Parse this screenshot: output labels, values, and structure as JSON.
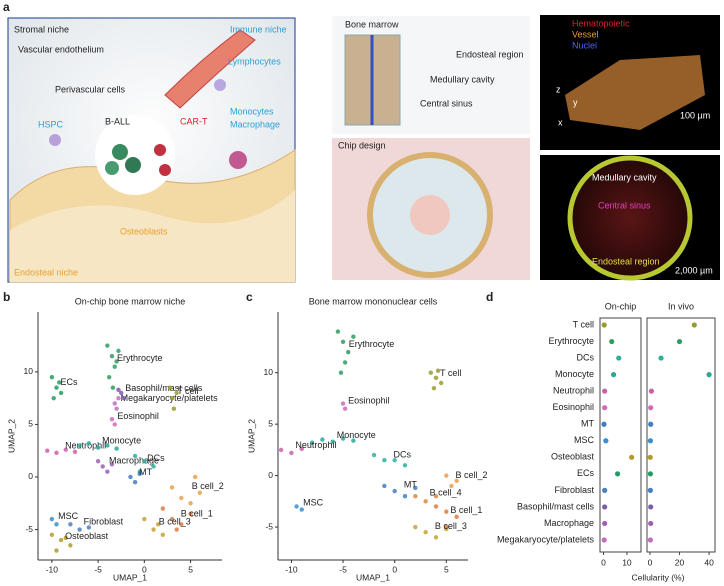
{
  "panel_a": {
    "label": "a",
    "labels": [
      "Stromal niche",
      "Immune niche",
      "Vascular endothelium",
      "Perivascular cells",
      "Lymphocytes",
      "HSPC",
      "B-ALL",
      "CAR-T",
      "Monocytes",
      "Macrophage",
      "Osteoblasts",
      "Endosteal niche",
      "Bone marrow",
      "Endosteal region",
      "Medullary cavity",
      "Central sinus",
      "Chip design",
      "Hematopoietic",
      "Vessel",
      "Nuclei",
      "100 µm",
      "Medullary cavity",
      "Central sinus",
      "Endosteal region",
      "2,000 µm",
      "z",
      "y",
      "x"
    ]
  },
  "chart_data": [
    {
      "type": "scatter",
      "panel": "b",
      "title": "On-chip bone marrow niche",
      "xlabel": "UMAP_1",
      "ylabel": "UMAP_2",
      "xlim": [
        -11.5,
        8.4
      ],
      "ylim": [
        -7.9,
        15.7
      ],
      "xticks": [
        -10,
        -5,
        0,
        5
      ],
      "yticks": [
        -5,
        0,
        5,
        10
      ],
      "series": [
        {
          "name": "Erythrocyte",
          "color": "#2e9e5e",
          "x": [
            -4,
            -3.5,
            -3.2,
            -3.8,
            -3,
            -2.8,
            -3.4
          ],
          "values": [
            12.5,
            11.5,
            10.5,
            9.5,
            11,
            12,
            8.5
          ]
        },
        {
          "name": "Megakaryocyte/platelets",
          "color": "#c26fc2",
          "x": [
            -3.2,
            -3,
            -2.8
          ],
          "values": [
            7,
            6.5,
            7.5
          ]
        },
        {
          "name": "ECs",
          "color": "#1f9e60",
          "x": [
            -10,
            -9.5,
            -9,
            -9.8,
            -9.2
          ],
          "values": [
            9.5,
            8.5,
            8,
            7.5,
            9
          ]
        },
        {
          "name": "Basophil/mast cells",
          "color": "#7a5cad",
          "x": [
            -2.5,
            -2.2,
            -2.8
          ],
          "values": [
            8,
            7.5,
            8.3
          ]
        },
        {
          "name": "T cell",
          "color": "#9a9a2e",
          "x": [
            2.8,
            3,
            3.2,
            3.5
          ],
          "values": [
            8.5,
            7.5,
            6.5,
            8
          ]
        },
        {
          "name": "Eosinophil",
          "color": "#d06ab8",
          "x": [
            -3.5,
            -3.2
          ],
          "values": [
            5.5,
            5
          ]
        },
        {
          "name": "Neutrophil",
          "color": "#cc5fa8",
          "x": [
            -10.5,
            -9.5,
            -8.5,
            -7.5
          ],
          "values": [
            2.5,
            2.3,
            2.6,
            2.4
          ]
        },
        {
          "name": "Monocyte",
          "color": "#27a99a",
          "x": [
            -7,
            -6,
            -5,
            -4,
            -3
          ],
          "values": [
            3,
            3.2,
            2.8,
            3,
            2.7
          ]
        },
        {
          "name": "Macrophage",
          "color": "#9c5fb5",
          "x": [
            -5,
            -4.5,
            -4,
            -3.5
          ],
          "values": [
            1.5,
            1,
            0.5,
            1.2
          ]
        },
        {
          "name": "DCs",
          "color": "#2bb0a0",
          "x": [
            -1,
            0,
            1,
            -0.5
          ],
          "values": [
            2,
            1.5,
            1,
            0.5
          ]
        },
        {
          "name": "MT",
          "color": "#3f7ec1",
          "x": [
            -1.5,
            -1,
            -0.5
          ],
          "values": [
            0,
            -0.5,
            0.3
          ]
        },
        {
          "name": "B cell_2",
          "color": "#e8a04a",
          "x": [
            3,
            4,
            5,
            6,
            5.5
          ],
          "values": [
            -1,
            -2,
            -2.5,
            -1.5,
            0
          ]
        },
        {
          "name": "B cell_1",
          "color": "#e07a3f",
          "x": [
            2,
            3,
            4,
            5,
            3.5
          ],
          "values": [
            -3,
            -4,
            -4.5,
            -3.5,
            -5
          ]
        },
        {
          "name": "B cell_3",
          "color": "#c9a035",
          "x": [
            0,
            1,
            2,
            1.5
          ],
          "values": [
            -4,
            -5,
            -5.5,
            -4.5
          ]
        },
        {
          "name": "Fibroblast",
          "color": "#4a7fc1",
          "x": [
            -8,
            -7,
            -6
          ],
          "values": [
            -4.5,
            -5,
            -4.8
          ]
        },
        {
          "name": "MSC",
          "color": "#3a8fd0",
          "x": [
            -10,
            -9.5
          ],
          "values": [
            -4,
            -4.5
          ]
        },
        {
          "name": "Osteoblast",
          "color": "#b59a2a",
          "x": [
            -10,
            -9,
            -8,
            -9.5,
            -8.5
          ],
          "values": [
            -5.5,
            -6,
            -6.5,
            -7,
            -5.8
          ]
        }
      ]
    },
    {
      "type": "scatter",
      "panel": "c",
      "title": "Bone marrow mononuclear cells",
      "xlabel": "UMAP_1",
      "ylabel": "UMAP_2",
      "xlim": [
        -11.3,
        7.1
      ],
      "ylim": [
        -8.2,
        15.9
      ],
      "xticks": [
        -10,
        -5,
        0,
        5
      ],
      "yticks": [
        -5,
        0,
        5,
        10
      ],
      "series": [
        {
          "name": "Erythrocyte",
          "color": "#2e9e5e",
          "x": [
            -5.5,
            -5,
            -4.5,
            -4.8,
            -5.2,
            -4
          ],
          "values": [
            14,
            13,
            12,
            11,
            10,
            13.5
          ]
        },
        {
          "name": "T cell",
          "color": "#9a9a2e",
          "x": [
            3.5,
            4,
            4.5,
            3.8,
            4.2
          ],
          "values": [
            10,
            9.5,
            9,
            8.5,
            10.2
          ]
        },
        {
          "name": "Eosinophil",
          "color": "#d06ab8",
          "x": [
            -5,
            -4.8
          ],
          "values": [
            7,
            6.5
          ]
        },
        {
          "name": "Monocyte",
          "color": "#27a99a",
          "x": [
            -8,
            -7,
            -6,
            -5,
            -4
          ],
          "values": [
            3.2,
            3.5,
            3.3,
            3.6,
            3.4
          ]
        },
        {
          "name": "Neutrophil",
          "color": "#cc5fa8",
          "x": [
            -11,
            -10,
            -9
          ],
          "values": [
            2.5,
            2.2,
            2.6
          ]
        },
        {
          "name": "DCs",
          "color": "#2bb0a0",
          "x": [
            -2,
            -1,
            0,
            1
          ],
          "values": [
            2,
            1.5,
            1.5,
            1
          ]
        },
        {
          "name": "MT",
          "color": "#3f7ec1",
          "x": [
            -1,
            0,
            1,
            2
          ],
          "values": [
            -1,
            -1.5,
            -2,
            -1.2
          ]
        },
        {
          "name": "B cell_2",
          "color": "#e8a04a",
          "x": [
            5,
            6,
            5.5
          ],
          "values": [
            0,
            -0.5,
            -1
          ]
        },
        {
          "name": "B cell_4",
          "color": "#d88a3a",
          "x": [
            2,
            3,
            4
          ],
          "values": [
            -2,
            -2.5,
            -2
          ]
        },
        {
          "name": "B cell_1",
          "color": "#e07a3f",
          "x": [
            4,
            5,
            6,
            5
          ],
          "values": [
            -3,
            -3.5,
            -4,
            -5
          ]
        },
        {
          "name": "B cell_3",
          "color": "#c9a035",
          "x": [
            2,
            3,
            4,
            5
          ],
          "values": [
            -5,
            -5.5,
            -6,
            -5.2
          ]
        },
        {
          "name": "MSC",
          "color": "#3a8fd0",
          "x": [
            -9.5,
            -9
          ],
          "values": [
            -3,
            -3.3
          ]
        }
      ]
    },
    {
      "type": "dot",
      "panel": "d",
      "xlabel": "Cellularity (%)",
      "categories": [
        "T cell",
        "Erythrocyte",
        "DCs",
        "Monocyte",
        "Neutrophil",
        "Eosinophil",
        "MT",
        "MSC",
        "Osteoblast",
        "ECs",
        "Fibroblast",
        "Basophil/mast cells",
        "Macrophage",
        "Megakaryocyte/platelets"
      ],
      "colors": [
        "#9a9a2e",
        "#2e9e5e",
        "#2bb0a0",
        "#27a99a",
        "#cc5fa8",
        "#d06ab8",
        "#3f7ec1",
        "#3a8fd0",
        "#b59a2a",
        "#1f9e60",
        "#4a7fc1",
        "#7a5cad",
        "#9c5fb5",
        "#c26fc2"
      ],
      "series": [
        {
          "name": "On-chip",
          "xlim": [
            -1.5,
            16
          ],
          "xticks": [
            0,
            10
          ],
          "values": [
            0.3,
            3.5,
            6.5,
            4.3,
            0.5,
            0.5,
            0.2,
            1,
            12,
            6,
            0.5,
            0.5,
            0.5,
            0.3
          ]
        },
        {
          "name": "In vivo",
          "xlim": [
            -2,
            44
          ],
          "xticks": [
            0,
            20,
            40
          ],
          "values": [
            30,
            20,
            7.5,
            40,
            1,
            0.5,
            0.5,
            0.3,
            0.2,
            0.3,
            0.3,
            0.5,
            0.5,
            0.3
          ]
        }
      ]
    }
  ]
}
